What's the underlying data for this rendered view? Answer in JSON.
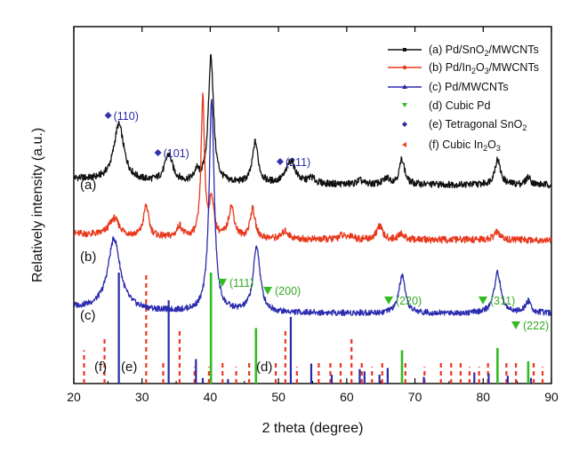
{
  "chart_data": {
    "type": "line",
    "xlabel": "2 theta (degree)",
    "ylabel": "Relatively intensity (a.u.)",
    "xlim": [
      20,
      90
    ],
    "xticks": [
      "20",
      "30",
      "40",
      "50",
      "60",
      "70",
      "80",
      "90"
    ],
    "grid": false,
    "legend_position": "top-right",
    "legend": [
      {
        "id": "a",
        "prefix": "(a) Pd/SnO",
        "sub": "2",
        "suffix": "/MWCNTs",
        "color": "#111111",
        "marker": "square"
      },
      {
        "id": "b",
        "prefix": "(b) Pd/In",
        "sub": "2",
        "mid": "O",
        "sub2": "3",
        "suffix": "/MWCNTs",
        "color": "#e8381c",
        "marker": "circle"
      },
      {
        "id": "c",
        "prefix": "(c) Pd/MWCNTs",
        "color": "#2b2bb0",
        "marker": "triangle"
      },
      {
        "id": "d",
        "prefix": "(d) Cubic Pd",
        "color": "#33bb22",
        "marker": "down-triangle"
      },
      {
        "id": "e",
        "prefix": "(e) Tetragonal SnO",
        "sub": "2",
        "color": "#2a2aa8",
        "marker": "diamond"
      },
      {
        "id": "f",
        "prefix": "(f)  Cubic In",
        "sub": "2",
        "mid": "O",
        "sub2": "3",
        "color": "#ee4422",
        "marker": "left-triangle"
      }
    ],
    "curve_labels": [
      {
        "text": "(a)",
        "series": "a"
      },
      {
        "text": "(b)",
        "series": "b"
      },
      {
        "text": "(c)",
        "series": "c"
      },
      {
        "text": "(f)",
        "series": "f"
      },
      {
        "text": "(e)",
        "series": "e"
      },
      {
        "text": "(d)",
        "series": "d"
      }
    ],
    "series": [
      {
        "name": "(a) Pd/SnO2/MWCNTs",
        "color": "#111111",
        "baseline": 0.9,
        "peaks": [
          [
            26.6,
            2.9,
            0.9
          ],
          [
            33.9,
            1.4,
            0.7
          ],
          [
            38.0,
            0.5,
            0.4
          ],
          [
            40.1,
            6.5,
            0.45
          ],
          [
            46.6,
            2.1,
            0.5
          ],
          [
            51.8,
            1.2,
            0.8
          ],
          [
            54.8,
            0.3,
            0.6
          ],
          [
            61.9,
            0.2,
            0.5
          ],
          [
            65.9,
            0.3,
            0.6
          ],
          [
            68.1,
            1.3,
            0.45
          ],
          [
            82.1,
            1.3,
            0.5
          ],
          [
            86.6,
            0.4,
            0.4
          ]
        ]
      },
      {
        "name": "(b) Pd/In2O3/MWCNTs",
        "color": "#e8381c",
        "baseline": 0.9,
        "peaks": [
          [
            25.9,
            0.9,
            0.9
          ],
          [
            30.6,
            1.6,
            0.45
          ],
          [
            35.5,
            0.6,
            0.45
          ],
          [
            38.9,
            7.1,
            0.3
          ],
          [
            40.2,
            1.9,
            0.4
          ],
          [
            43.1,
            1.6,
            0.5
          ],
          [
            46.2,
            1.5,
            0.45
          ],
          [
            51.0,
            0.4,
            0.6
          ],
          [
            59.2,
            0.2,
            0.5
          ],
          [
            60.6,
            0.2,
            0.5
          ],
          [
            64.8,
            0.7,
            0.5
          ],
          [
            68.0,
            0.3,
            0.5
          ],
          [
            82.0,
            0.4,
            0.5
          ]
        ]
      },
      {
        "name": "(c) Pd/MWCNTs",
        "color": "#2b2bb0",
        "baseline": 1.0,
        "peaks": [
          [
            25.9,
            4.2,
            1.1
          ],
          [
            40.2,
            12.5,
            0.45
          ],
          [
            46.8,
            3.9,
            0.6
          ],
          [
            68.1,
            2.2,
            0.55
          ],
          [
            82.1,
            2.4,
            0.6
          ],
          [
            86.6,
            0.7,
            0.5
          ]
        ]
      }
    ],
    "reference_peaks": {
      "d_cubic_pd": {
        "color": "#33bb22",
        "x": [
          40.1,
          46.7,
          68.1,
          82.1,
          86.6
        ],
        "h": [
          1.0,
          0.5,
          0.3,
          0.32,
          0.2
        ]
      },
      "e_tetragonal_sno2": {
        "color": "#2a2aa8",
        "x": [
          26.6,
          33.9,
          37.9,
          38.9,
          42.6,
          51.8,
          54.8,
          57.8,
          61.9,
          62.6,
          64.8,
          66.0,
          71.3,
          78.7,
          80.8,
          83.6,
          87.0
        ],
        "h": [
          1.0,
          0.75,
          0.22,
          0.05,
          0.04,
          0.6,
          0.18,
          0.08,
          0.13,
          0.11,
          0.08,
          0.14,
          0.06,
          0.1,
          0.09,
          0.07,
          0.05
        ]
      },
      "f_cubic_in2o3": {
        "color": "#ee3322",
        "x": [
          21.5,
          24.5,
          30.6,
          33.1,
          35.5,
          37.7,
          39.8,
          41.8,
          43.8,
          45.7,
          49.6,
          51.0,
          52.7,
          55.9,
          57.6,
          59.1,
          60.7,
          62.2,
          63.7,
          65.2,
          68.6,
          71.4,
          73.8,
          75.3,
          76.7,
          78.0,
          79.4,
          80.7,
          83.4,
          84.8,
          87.4,
          88.7
        ],
        "h": [
          0.3,
          0.4,
          1.0,
          0.2,
          0.5,
          0.15,
          0.15,
          0.2,
          0.15,
          0.2,
          0.2,
          0.5,
          0.15,
          0.2,
          0.2,
          0.2,
          0.4,
          0.2,
          0.15,
          0.2,
          0.2,
          0.15,
          0.2,
          0.2,
          0.2,
          0.15,
          0.15,
          0.2,
          0.2,
          0.2,
          0.2,
          0.15
        ]
      }
    },
    "annotations": {
      "sno2": [
        {
          "text": "(110)",
          "x": 26.6
        },
        {
          "text": "(101)",
          "x": 33.9
        },
        {
          "text": "(211)",
          "x": 51.8
        }
      ],
      "pd": [
        {
          "text": "(111)",
          "x": 40.1
        },
        {
          "text": "(200)",
          "x": 46.7
        },
        {
          "text": "(220)",
          "x": 68.1
        },
        {
          "text": "(311)",
          "x": 82.1
        },
        {
          "text": "(222)",
          "x": 86.6
        }
      ]
    }
  }
}
